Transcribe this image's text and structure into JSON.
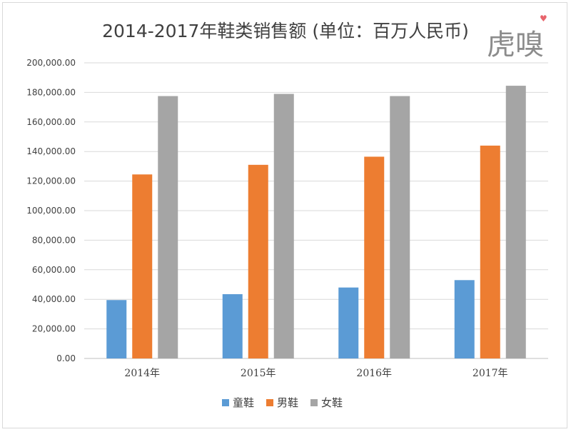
{
  "watermark": {
    "text": "虎嗅",
    "accent_color": "#e8646c"
  },
  "chart_data": {
    "type": "bar",
    "title": "2014-2017年鞋类销售额 (单位：百万人民币)",
    "xlabel": "",
    "ylabel": "",
    "categories": [
      "2014年",
      "2015年",
      "2016年",
      "2017年"
    ],
    "series": [
      {
        "name": "童鞋",
        "color": "#5b9bd5",
        "values": [
          39500,
          43500,
          48000,
          53000
        ]
      },
      {
        "name": "男鞋",
        "color": "#ed7d31",
        "values": [
          124500,
          131000,
          136500,
          144000
        ]
      },
      {
        "name": "女鞋",
        "color": "#a5a5a5",
        "values": [
          177500,
          179000,
          177500,
          184500
        ]
      }
    ],
    "ylim": [
      0,
      200000
    ],
    "yticks": [
      "0.00",
      "20,000.00",
      "40,000.00",
      "60,000.00",
      "80,000.00",
      "100,000.00",
      "120,000.00",
      "140,000.00",
      "160,000.00",
      "180,000.00",
      "200,000.00"
    ],
    "grid": true,
    "legend_position": "bottom"
  }
}
